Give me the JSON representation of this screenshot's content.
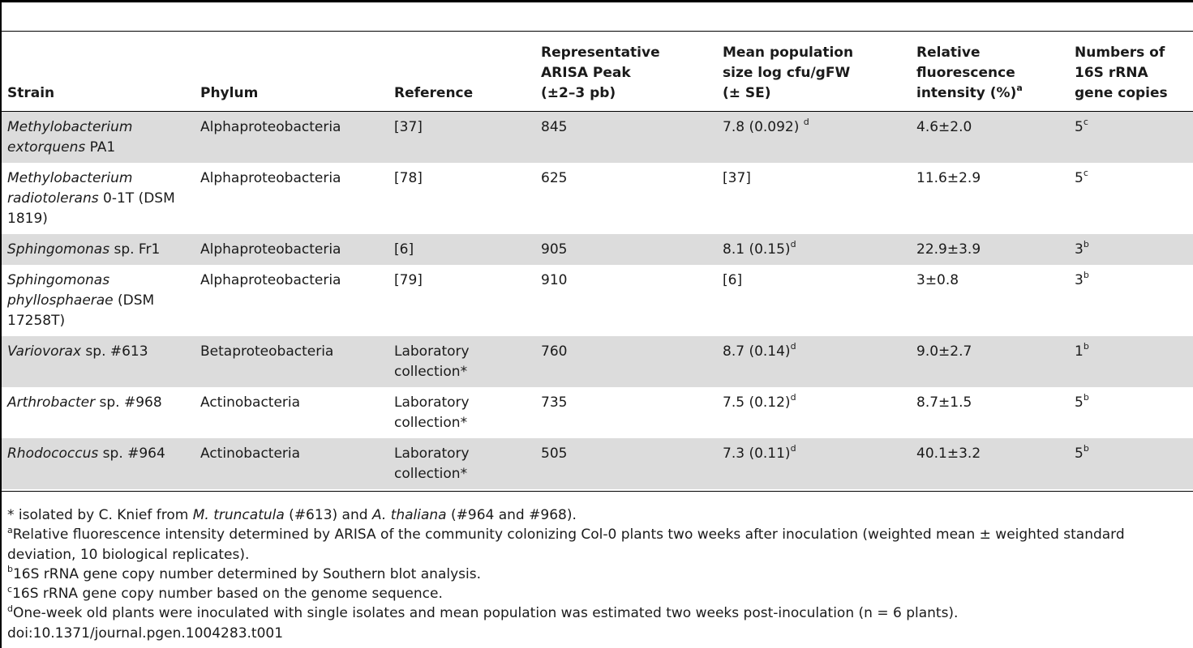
{
  "table": {
    "headers": {
      "strain": "Strain",
      "phylum": "Phylum",
      "reference": "Reference",
      "arisa_l1": "Representative",
      "arisa_l2": "ARISA Peak",
      "arisa_l3": "(±2–3 pb)",
      "pop_l1": "Mean population",
      "pop_l2": "size log cfu/gFW",
      "pop_l3": "(± SE)",
      "fluor_l1": "Relative",
      "fluor_l2": "fluorescence",
      "fluor_l3": "intensity (%)",
      "fluor_sup": "a",
      "copies_l1": "Numbers of",
      "copies_l2": "16S rRNA",
      "copies_l3": "gene copies"
    },
    "rows": [
      {
        "strain_italic": "Methylobacterium extorquens",
        "strain_plain": " PA1",
        "phylum": "Alphaproteobacteria",
        "reference": "[37]",
        "arisa": "845",
        "pop": "7.8 (0.092) ",
        "pop_sup": "d",
        "fluor": "4.6±2.0",
        "copies": "5",
        "copies_sup": "c"
      },
      {
        "strain_italic": "Methylobacterium radiotolerans",
        "strain_plain": " 0-1T (DSM 1819)",
        "phylum": "Alphaproteobacteria",
        "reference": "[78]",
        "arisa": "625",
        "pop": "[37]",
        "pop_sup": "",
        "fluor": "11.6±2.9",
        "copies": "5",
        "copies_sup": "c"
      },
      {
        "strain_italic": "Sphingomonas",
        "strain_plain": " sp. Fr1",
        "phylum": "Alphaproteobacteria",
        "reference": "[6]",
        "arisa": "905",
        "pop": "8.1 (0.15)",
        "pop_sup": "d",
        "fluor": "22.9±3.9",
        "copies": "3",
        "copies_sup": "b"
      },
      {
        "strain_italic": "Sphingomonas phyllosphaerae",
        "strain_plain": " (DSM 17258T)",
        "phylum": "Alphaproteobacteria",
        "reference": "[79]",
        "arisa": "910",
        "pop": "[6]",
        "pop_sup": "",
        "fluor": "3±0.8",
        "copies": "3",
        "copies_sup": "b"
      },
      {
        "strain_italic": "Variovorax",
        "strain_plain": " sp. #613",
        "phylum": "Betaproteobacteria",
        "reference": "Laboratory collection*",
        "arisa": "760",
        "pop": "8.7 (0.14)",
        "pop_sup": "d",
        "fluor": "9.0±2.7",
        "copies": "1",
        "copies_sup": "b"
      },
      {
        "strain_italic": "Arthrobacter",
        "strain_plain": " sp. #968",
        "phylum": "Actinobacteria",
        "reference": "Laboratory collection*",
        "arisa": "735",
        "pop": "7.5 (0.12)",
        "pop_sup": "d",
        "fluor": "8.7±1.5",
        "copies": "5",
        "copies_sup": "b"
      },
      {
        "strain_italic": "Rhodococcus",
        "strain_plain": " sp. #964",
        "phylum": "Actinobacteria",
        "reference": "Laboratory collection*",
        "arisa": "505",
        "pop": "7.3 (0.11)",
        "pop_sup": "d",
        "fluor": "40.1±3.2",
        "copies": "5",
        "copies_sup": "b"
      }
    ]
  },
  "footnotes": {
    "star_a": "* isolated by C. Knief from ",
    "star_b": "M. truncatula",
    "star_c": " (#613) and ",
    "star_d": "A. thaliana",
    "star_e": " (#964 and #968).",
    "a_sup": "a",
    "a_text": "Relative fluorescence intensity determined by ARISA of the community colonizing Col-0 plants two weeks after inoculation (weighted mean ± weighted standard deviation, 10 biological replicates).",
    "b_sup": "b",
    "b_text": "16S rRNA gene copy number determined by Southern blot analysis.",
    "c_sup": "c",
    "c_text": "16S rRNA gene copy number based on the genome sequence.",
    "d_sup": "d",
    "d_text": "One-week old plants were inoculated with single isolates and mean population was estimated two weeks post-inoculation (n = 6 plants).",
    "doi": "doi:10.1371/journal.pgen.1004283.t001"
  }
}
